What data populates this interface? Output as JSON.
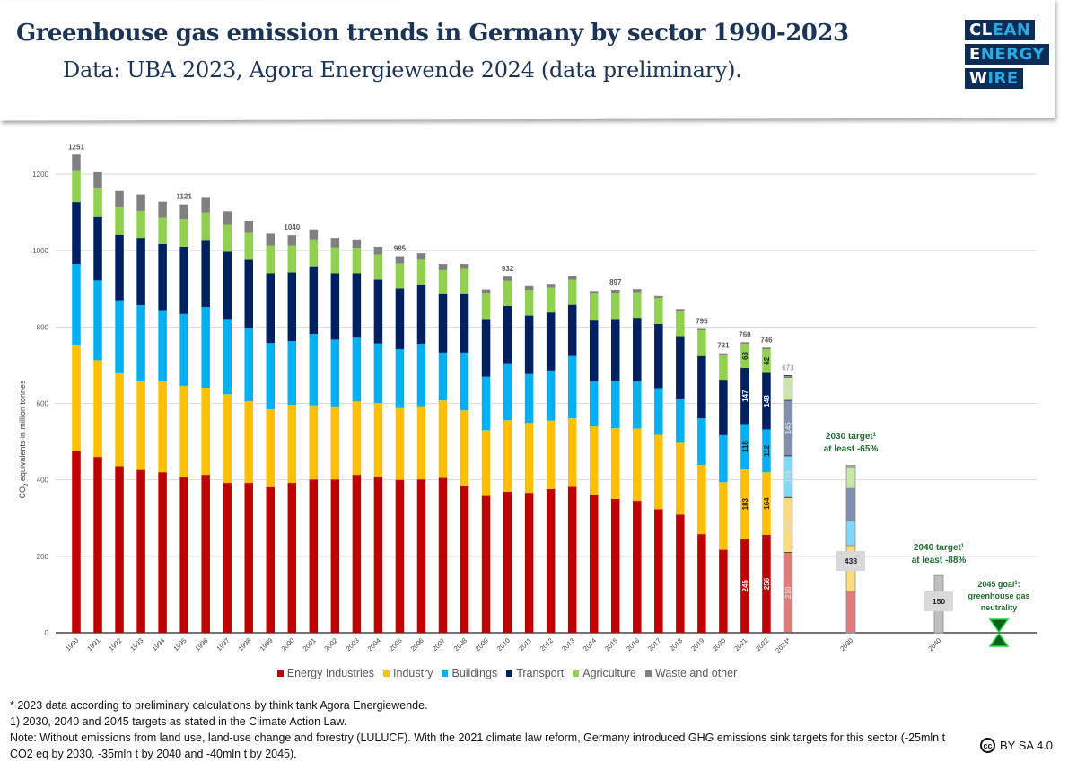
{
  "header": {
    "title": "Greenhouse gas emission trends in Germany by sector 1990-2023",
    "subtitle": "Data: UBA 2023, Agora Energiewende 2024 (data preliminary).",
    "logo": [
      "CLEAN",
      "ENERGY",
      "WIRE"
    ]
  },
  "chart_data": {
    "type": "bar",
    "stacked": true,
    "ylabel": "CO2 equivalents in million tonnes",
    "ylim": [
      0,
      1200
    ],
    "yticks": [
      0,
      200,
      400,
      600,
      800,
      1000,
      1200
    ],
    "grid": true,
    "legend_position": "bottom",
    "categories": [
      "1990",
      "1991",
      "1992",
      "1993",
      "1994",
      "1995",
      "1996",
      "1997",
      "1998",
      "1999",
      "2000",
      "2001",
      "2002",
      "2003",
      "2004",
      "2005",
      "2006",
      "2007",
      "2008",
      "2009",
      "2010",
      "2011",
      "2012",
      "2013",
      "2014",
      "2015",
      "2016",
      "2017",
      "2018",
      "2019",
      "2020",
      "2021",
      "2022",
      "2023*"
    ],
    "series": [
      {
        "name": "Energy Industries",
        "color": "#c00000",
        "values": [
          476,
          460,
          436,
          426,
          420,
          407,
          413,
          392,
          392,
          381,
          392,
          401,
          401,
          413,
          408,
          400,
          401,
          405,
          384,
          358,
          369,
          366,
          376,
          382,
          361,
          350,
          345,
          323,
          309,
          258,
          217,
          245,
          256,
          210
        ]
      },
      {
        "name": "Industry",
        "color": "#ffc000",
        "values": [
          278,
          253,
          243,
          234,
          238,
          239,
          228,
          232,
          214,
          204,
          204,
          194,
          191,
          192,
          193,
          188,
          192,
          203,
          198,
          172,
          187,
          183,
          179,
          179,
          179,
          185,
          189,
          195,
          188,
          181,
          177,
          183,
          164,
          144
        ]
      },
      {
        "name": "Buildings",
        "color": "#00b0f0",
        "values": [
          211,
          209,
          191,
          197,
          186,
          188,
          211,
          197,
          190,
          173,
          167,
          187,
          175,
          167,
          156,
          154,
          163,
          125,
          151,
          140,
          147,
          128,
          131,
          163,
          119,
          125,
          125,
          122,
          116,
          122,
          123,
          118,
          112,
          109
        ]
      },
      {
        "name": "Transport",
        "color": "#002060",
        "values": [
          162,
          166,
          171,
          176,
          173,
          176,
          176,
          176,
          180,
          183,
          180,
          177,
          174,
          169,
          167,
          159,
          155,
          153,
          153,
          151,
          152,
          153,
          152,
          134,
          158,
          161,
          165,
          168,
          163,
          163,
          145,
          147,
          148,
          145
        ]
      },
      {
        "name": "Agriculture",
        "color": "#92d050",
        "values": [
          83,
          74,
          72,
          71,
          69,
          72,
          72,
          70,
          70,
          72,
          70,
          70,
          67,
          66,
          66,
          65,
          65,
          63,
          66,
          66,
          66,
          67,
          65,
          66,
          70,
          68,
          67,
          68,
          65,
          67,
          64,
          63,
          62,
          61
        ]
      },
      {
        "name": "Waste and other",
        "color": "#808080",
        "values": [
          41,
          43,
          43,
          43,
          42,
          39,
          38,
          36,
          32,
          31,
          27,
          26,
          25,
          22,
          20,
          19,
          17,
          16,
          13,
          11,
          11,
          10,
          10,
          10,
          7,
          8,
          8,
          5,
          6,
          4,
          5,
          4,
          4,
          4
        ]
      }
    ],
    "total_labels": {
      "1990": "1251",
      "1995": "1121",
      "2000": "1040",
      "2005": "985",
      "2010": "932",
      "2015": "897",
      "2019": "795",
      "2020": "731",
      "2021": "760",
      "2022": "746",
      "2023*": "673"
    },
    "segment_labels": {
      "2021": [
        "245",
        "183",
        "118",
        "147",
        "63"
      ],
      "2022": [
        "256",
        "164",
        "112",
        "148",
        "62"
      ],
      "2023*": [
        "210",
        "144",
        "109",
        "145",
        "61"
      ]
    },
    "targets": [
      {
        "year": "2030",
        "values": [
          109,
          119,
          65,
          85,
          56,
          4
        ],
        "total_label": "438",
        "title": "2030 target",
        "sup": "1",
        "note": "at least -65%"
      },
      {
        "year": "2040",
        "values": [
          150
        ],
        "total_label": "150",
        "title": "2040 target",
        "sup": "1",
        "note": "at least -88%"
      },
      {
        "year": "2045",
        "title": "2045 goal",
        "sup": "1",
        "note_lines": [
          ":",
          "greenhouse gas",
          "neutrality"
        ]
      }
    ]
  },
  "notes": [
    "* 2023 data according to preliminary calculations by think tank Agora Energiewende.",
    "1) 2030, 2040 and 2045 targets as stated in the Climate Action Law.",
    "Note: Without emissions from land use, land-use change and forestry (LULUCF). With the 2021 climate law reform, Germany introduced GHG emissions sink targets for this sector (-25mln t CO2 eq by 2030, -35mln t by 2040 and -40mln t by 2045)."
  ],
  "license": {
    "icon": "cc",
    "label": "BY SA 4.0"
  }
}
